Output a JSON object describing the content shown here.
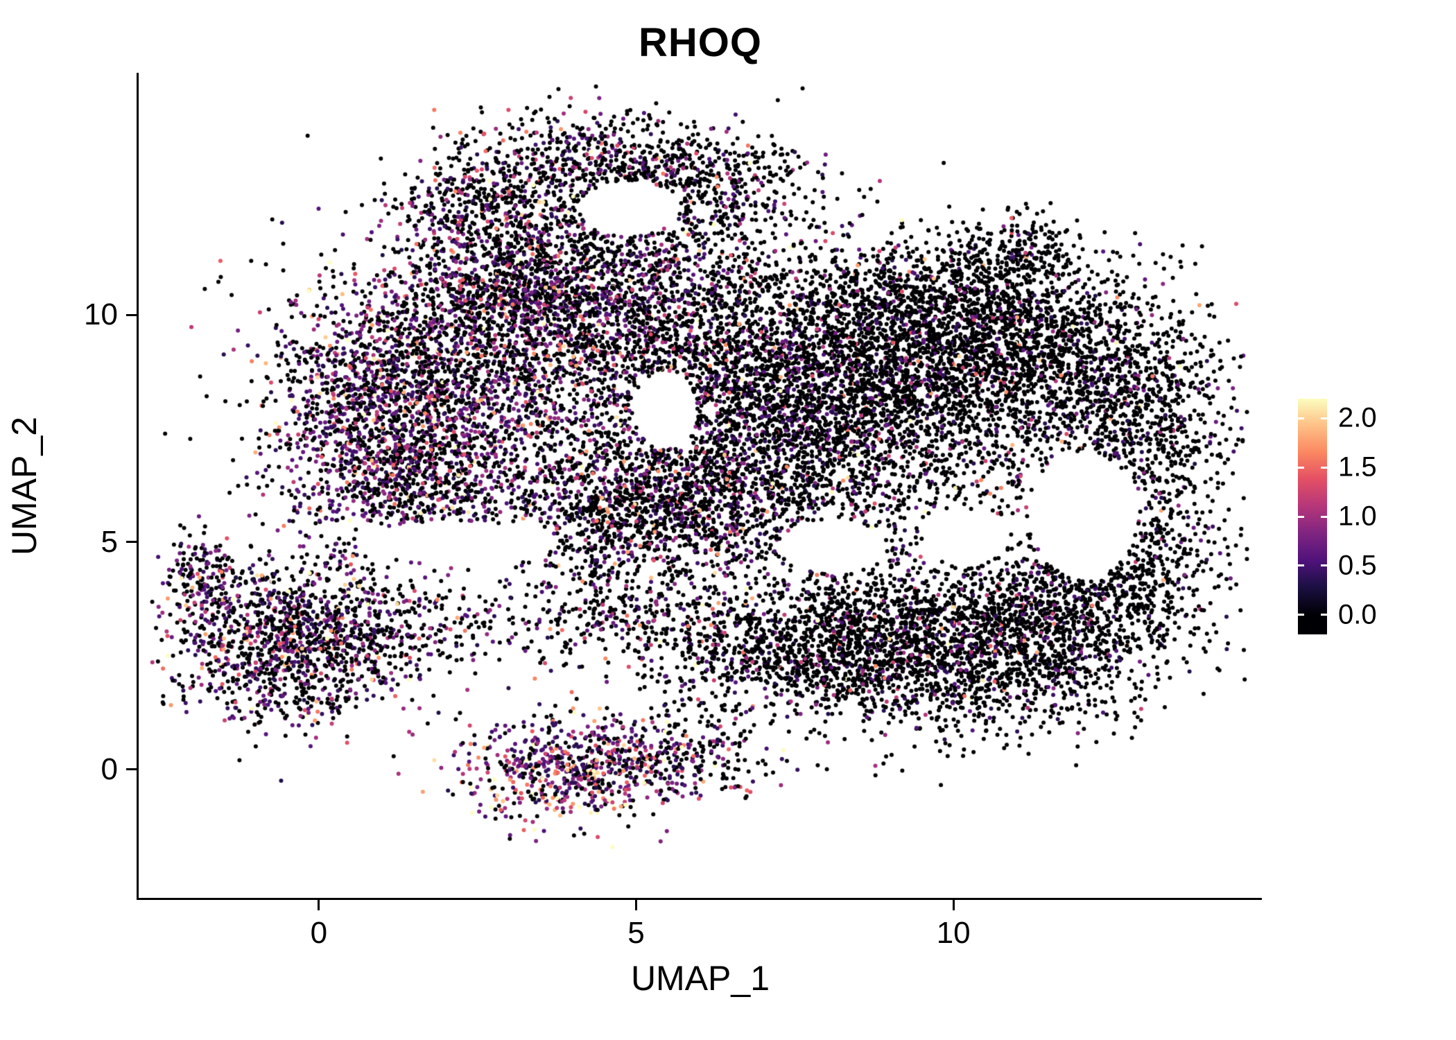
{
  "chart_data": {
    "type": "scatter",
    "title": "RHOQ",
    "xlabel": "UMAP_1",
    "ylabel": "UMAP_2",
    "xlim": [
      -2.84,
      14.86
    ],
    "ylim": [
      -2.83,
      15.33
    ],
    "xticks": {
      "values": [
        0,
        5,
        10
      ],
      "labels": [
        "0",
        "5",
        "10"
      ]
    },
    "yticks": {
      "values": [
        0,
        5,
        10
      ],
      "labels": [
        "0",
        "5",
        "10"
      ]
    },
    "grid": false,
    "background": "#ffffff",
    "axis_color": "#000000",
    "legend": {
      "position": "right",
      "kind": "colorbar",
      "tick_values": [
        2.0,
        1.5,
        1.0,
        0.5,
        0.0
      ],
      "tick_labels": [
        "2.0",
        "1.5",
        "1.0",
        "0.5",
        "0.0"
      ],
      "vmin": 0.0,
      "vmax": 2.2
    },
    "colormap": {
      "name": "magma",
      "stops": [
        {
          "t": 0.0,
          "color": "#000004"
        },
        {
          "t": 0.13,
          "color": "#1C1044"
        },
        {
          "t": 0.25,
          "color": "#4F127B"
        },
        {
          "t": 0.38,
          "color": "#812581"
        },
        {
          "t": 0.5,
          "color": "#B5367A"
        },
        {
          "t": 0.63,
          "color": "#E55064"
        },
        {
          "t": 0.75,
          "color": "#FB8761"
        },
        {
          "t": 0.88,
          "color": "#FEC287"
        },
        {
          "t": 1.0,
          "color": "#FCFDBF"
        }
      ]
    },
    "point_style": {
      "radius_px": 3,
      "color_zero": "#000004"
    },
    "clusters": [
      {
        "n": 420,
        "cx": 2.7,
        "cy": 12.4,
        "sx": 0.75,
        "sy": 0.6,
        "frac_expressing": 0.35,
        "expr_scale": 0.5
      },
      {
        "n": 500,
        "cx": 4.4,
        "cy": 13.4,
        "sx": 1.0,
        "sy": 0.55,
        "frac_expressing": 0.3,
        "expr_scale": 0.5
      },
      {
        "n": 420,
        "cx": 6.0,
        "cy": 12.9,
        "sx": 0.95,
        "sy": 0.6,
        "frac_expressing": 0.22,
        "expr_scale": 0.5
      },
      {
        "n": 420,
        "cx": 4.7,
        "cy": 11.6,
        "sx": 1.4,
        "sy": 0.7,
        "frac_expressing": 0.3,
        "expr_scale": 0.5
      },
      {
        "n": 900,
        "cx": 0.7,
        "cy": 8.0,
        "sx": 0.8,
        "sy": 1.25,
        "frac_expressing": 0.5,
        "expr_scale": 0.55
      },
      {
        "n": 1500,
        "cx": 2.3,
        "cy": 8.8,
        "sx": 1.15,
        "sy": 1.35,
        "frac_expressing": 0.45,
        "expr_scale": 0.55
      },
      {
        "n": 700,
        "cx": 1.6,
        "cy": 6.4,
        "sx": 1.0,
        "sy": 0.8,
        "frac_expressing": 0.42,
        "expr_scale": 0.55
      },
      {
        "n": 520,
        "cx": 3.1,
        "cy": 10.7,
        "sx": 0.85,
        "sy": 0.65,
        "frac_expressing": 0.35,
        "expr_scale": 0.5
      },
      {
        "n": 1300,
        "cx": 4.5,
        "cy": 9.9,
        "sx": 1.25,
        "sy": 1.05,
        "frac_expressing": 0.33,
        "expr_scale": 0.5
      },
      {
        "n": 1600,
        "cx": 6.6,
        "cy": 8.1,
        "sx": 1.25,
        "sy": 1.5,
        "frac_expressing": 0.25,
        "expr_scale": 0.5
      },
      {
        "n": 650,
        "cx": 6.1,
        "cy": 5.7,
        "sx": 1.05,
        "sy": 0.8,
        "frac_expressing": 0.3,
        "expr_scale": 0.5
      },
      {
        "n": 620,
        "cx": 4.6,
        "cy": 5.9,
        "sx": 0.9,
        "sy": 0.9,
        "frac_expressing": 0.35,
        "expr_scale": 0.5
      },
      {
        "n": 2400,
        "cx": 8.8,
        "cy": 8.3,
        "sx": 1.35,
        "sy": 1.35,
        "frac_expressing": 0.18,
        "expr_scale": 0.45
      },
      {
        "n": 700,
        "cx": 9.2,
        "cy": 10.4,
        "sx": 1.4,
        "sy": 0.7,
        "frac_expressing": 0.12,
        "expr_scale": 0.45
      },
      {
        "n": 700,
        "cx": 10.6,
        "cy": 9.4,
        "sx": 0.95,
        "sy": 0.9,
        "frac_expressing": 0.12,
        "expr_scale": 0.45
      },
      {
        "n": 220,
        "cx": 10.9,
        "cy": 11.2,
        "sx": 0.5,
        "sy": 0.5,
        "frac_expressing": 0.1,
        "expr_scale": 0.45
      },
      {
        "n": 900,
        "cx": 11.9,
        "cy": 8.8,
        "sx": 1.0,
        "sy": 1.05,
        "frac_expressing": 0.12,
        "expr_scale": 0.45
      },
      {
        "n": 600,
        "cx": 13.2,
        "cy": 7.4,
        "sx": 0.6,
        "sy": 1.3,
        "frac_expressing": 0.12,
        "expr_scale": 0.45
      },
      {
        "n": 520,
        "cx": 12.7,
        "cy": 4.3,
        "sx": 0.8,
        "sy": 0.95,
        "frac_expressing": 0.12,
        "expr_scale": 0.45
      },
      {
        "n": 1900,
        "cx": 9.7,
        "cy": 2.7,
        "sx": 1.5,
        "sy": 0.95,
        "frac_expressing": 0.15,
        "expr_scale": 0.45
      },
      {
        "n": 800,
        "cx": 11.4,
        "cy": 3.3,
        "sx": 1.0,
        "sy": 1.0,
        "frac_expressing": 0.13,
        "expr_scale": 0.45
      },
      {
        "n": 700,
        "cx": 7.6,
        "cy": 2.6,
        "sx": 1.1,
        "sy": 0.7,
        "frac_expressing": 0.18,
        "expr_scale": 0.45
      },
      {
        "n": 380,
        "cx": 4.9,
        "cy": 3.3,
        "sx": 1.3,
        "sy": 0.55,
        "frac_expressing": 0.3,
        "expr_scale": 0.5
      },
      {
        "n": 1300,
        "cx": -0.5,
        "cy": 2.8,
        "sx": 0.95,
        "sy": 0.95,
        "frac_expressing": 0.45,
        "expr_scale": 0.55
      },
      {
        "n": 150,
        "cx": -1.85,
        "cy": 4.25,
        "sx": 0.3,
        "sy": 0.45,
        "frac_expressing": 0.4,
        "expr_scale": 0.5
      },
      {
        "n": 240,
        "cx": 1.3,
        "cy": 3.1,
        "sx": 0.8,
        "sy": 0.55,
        "frac_expressing": 0.3,
        "expr_scale": 0.5
      },
      {
        "n": 600,
        "cx": 3.9,
        "cy": 0.0,
        "sx": 0.8,
        "sy": 0.6,
        "frac_expressing": 0.72,
        "expr_scale": 0.75
      },
      {
        "n": 300,
        "cx": 5.6,
        "cy": 0.3,
        "sx": 0.75,
        "sy": 0.5,
        "frac_expressing": 0.5,
        "expr_scale": 0.6
      },
      {
        "n": 420,
        "cx": 7.0,
        "cy": 5.3,
        "sx": 2.3,
        "sy": 1.0,
        "frac_expressing": 0.22,
        "expr_scale": 0.5
      },
      {
        "n": 350,
        "cx": 6.5,
        "cy": 8.5,
        "sx": 4.0,
        "sy": 2.6,
        "frac_expressing": 0.22,
        "expr_scale": 0.5
      }
    ],
    "holes": [
      {
        "cx": 12.05,
        "cy": 5.6,
        "rx": 0.85,
        "ry": 1.4
      },
      {
        "cx": 4.9,
        "cy": 12.35,
        "rx": 0.8,
        "ry": 0.6
      },
      {
        "cx": 5.45,
        "cy": 7.9,
        "rx": 0.5,
        "ry": 0.85
      },
      {
        "cx": 8.1,
        "cy": 4.9,
        "rx": 0.85,
        "ry": 0.6
      },
      {
        "cx": 10.2,
        "cy": 5.1,
        "rx": 0.7,
        "ry": 0.6
      },
      {
        "cx": 2.2,
        "cy": 5.0,
        "rx": 1.6,
        "ry": 0.45
      }
    ]
  }
}
